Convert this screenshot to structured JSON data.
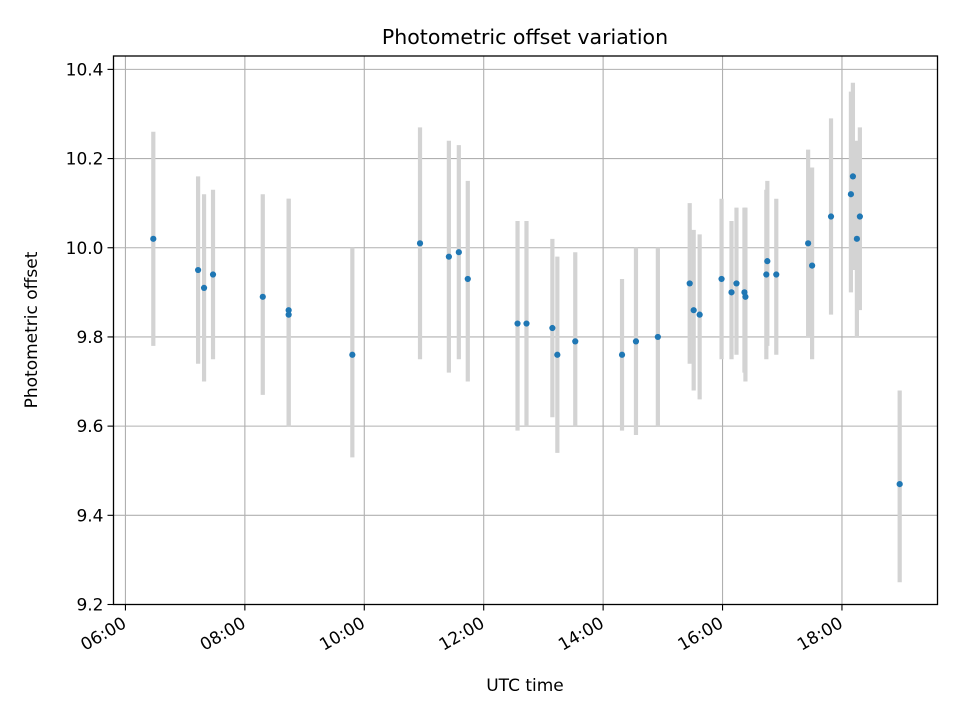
{
  "chart_data": {
    "type": "scatter",
    "title": "Photometric offset variation",
    "xlabel": "UTC time",
    "ylabel": "Photometric offset",
    "xticks": [
      "06:00",
      "08:00",
      "10:00",
      "12:00",
      "14:00",
      "16:00",
      "18:00"
    ],
    "yticks": [
      "9.2",
      "9.4",
      "9.6",
      "9.8",
      "10.0",
      "10.2",
      "10.4"
    ],
    "xlim": [
      "05:48",
      "19:36"
    ],
    "ylim": [
      9.2,
      10.43
    ],
    "grid": true,
    "marker_color": "#1f77b4",
    "errorbar_color": "#d3d3d3",
    "points": [
      {
        "x": "06:28",
        "y": 10.02,
        "lo": 9.78,
        "hi": 10.26
      },
      {
        "x": "07:13",
        "y": 9.95,
        "lo": 9.74,
        "hi": 10.16
      },
      {
        "x": "07:19",
        "y": 9.91,
        "lo": 9.7,
        "hi": 10.12
      },
      {
        "x": "07:28",
        "y": 9.94,
        "lo": 9.75,
        "hi": 10.13
      },
      {
        "x": "08:18",
        "y": 9.89,
        "lo": 9.67,
        "hi": 10.12
      },
      {
        "x": "08:44",
        "y": 9.86,
        "lo": 9.6,
        "hi": 10.11
      },
      {
        "x": "08:44",
        "y": 9.85,
        "lo": 9.6,
        "hi": 10.11
      },
      {
        "x": "09:48",
        "y": 9.76,
        "lo": 9.53,
        "hi": 10.0
      },
      {
        "x": "10:56",
        "y": 10.01,
        "lo": 9.75,
        "hi": 10.27
      },
      {
        "x": "11:25",
        "y": 9.98,
        "lo": 9.72,
        "hi": 10.24
      },
      {
        "x": "11:35",
        "y": 9.99,
        "lo": 9.75,
        "hi": 10.23
      },
      {
        "x": "11:44",
        "y": 9.93,
        "lo": 9.7,
        "hi": 10.15
      },
      {
        "x": "12:34",
        "y": 9.83,
        "lo": 9.59,
        "hi": 10.06
      },
      {
        "x": "12:43",
        "y": 9.83,
        "lo": 9.6,
        "hi": 10.06
      },
      {
        "x": "13:09",
        "y": 9.82,
        "lo": 9.62,
        "hi": 10.02
      },
      {
        "x": "13:14",
        "y": 9.76,
        "lo": 9.54,
        "hi": 9.98
      },
      {
        "x": "13:32",
        "y": 9.79,
        "lo": 9.6,
        "hi": 9.99
      },
      {
        "x": "14:19",
        "y": 9.76,
        "lo": 9.59,
        "hi": 9.93
      },
      {
        "x": "14:33",
        "y": 9.79,
        "lo": 9.58,
        "hi": 10.0
      },
      {
        "x": "14:55",
        "y": 9.8,
        "lo": 9.6,
        "hi": 10.0
      },
      {
        "x": "15:27",
        "y": 9.92,
        "lo": 9.74,
        "hi": 10.1
      },
      {
        "x": "15:31",
        "y": 9.86,
        "lo": 9.68,
        "hi": 10.04
      },
      {
        "x": "15:37",
        "y": 9.85,
        "lo": 9.66,
        "hi": 10.03
      },
      {
        "x": "15:59",
        "y": 9.93,
        "lo": 9.75,
        "hi": 10.11
      },
      {
        "x": "16:09",
        "y": 9.9,
        "lo": 9.75,
        "hi": 10.06
      },
      {
        "x": "16:14",
        "y": 9.92,
        "lo": 9.76,
        "hi": 10.09
      },
      {
        "x": "16:22",
        "y": 9.9,
        "lo": 9.72,
        "hi": 10.09
      },
      {
        "x": "16:23",
        "y": 9.89,
        "lo": 9.7,
        "hi": 10.09
      },
      {
        "x": "16:44",
        "y": 9.94,
        "lo": 9.75,
        "hi": 10.13
      },
      {
        "x": "16:45",
        "y": 9.97,
        "lo": 9.78,
        "hi": 10.15
      },
      {
        "x": "16:54",
        "y": 9.94,
        "lo": 9.76,
        "hi": 10.11
      },
      {
        "x": "17:26",
        "y": 10.01,
        "lo": 9.8,
        "hi": 10.22
      },
      {
        "x": "17:30",
        "y": 9.96,
        "lo": 9.75,
        "hi": 10.18
      },
      {
        "x": "17:49",
        "y": 10.07,
        "lo": 9.85,
        "hi": 10.29
      },
      {
        "x": "18:09",
        "y": 10.12,
        "lo": 9.9,
        "hi": 10.35
      },
      {
        "x": "18:11",
        "y": 10.16,
        "lo": 9.95,
        "hi": 10.37
      },
      {
        "x": "18:15",
        "y": 10.02,
        "lo": 9.8,
        "hi": 10.24
      },
      {
        "x": "18:18",
        "y": 10.07,
        "lo": 9.86,
        "hi": 10.27
      },
      {
        "x": "18:58",
        "y": 9.47,
        "lo": 9.25,
        "hi": 9.68
      }
    ]
  }
}
